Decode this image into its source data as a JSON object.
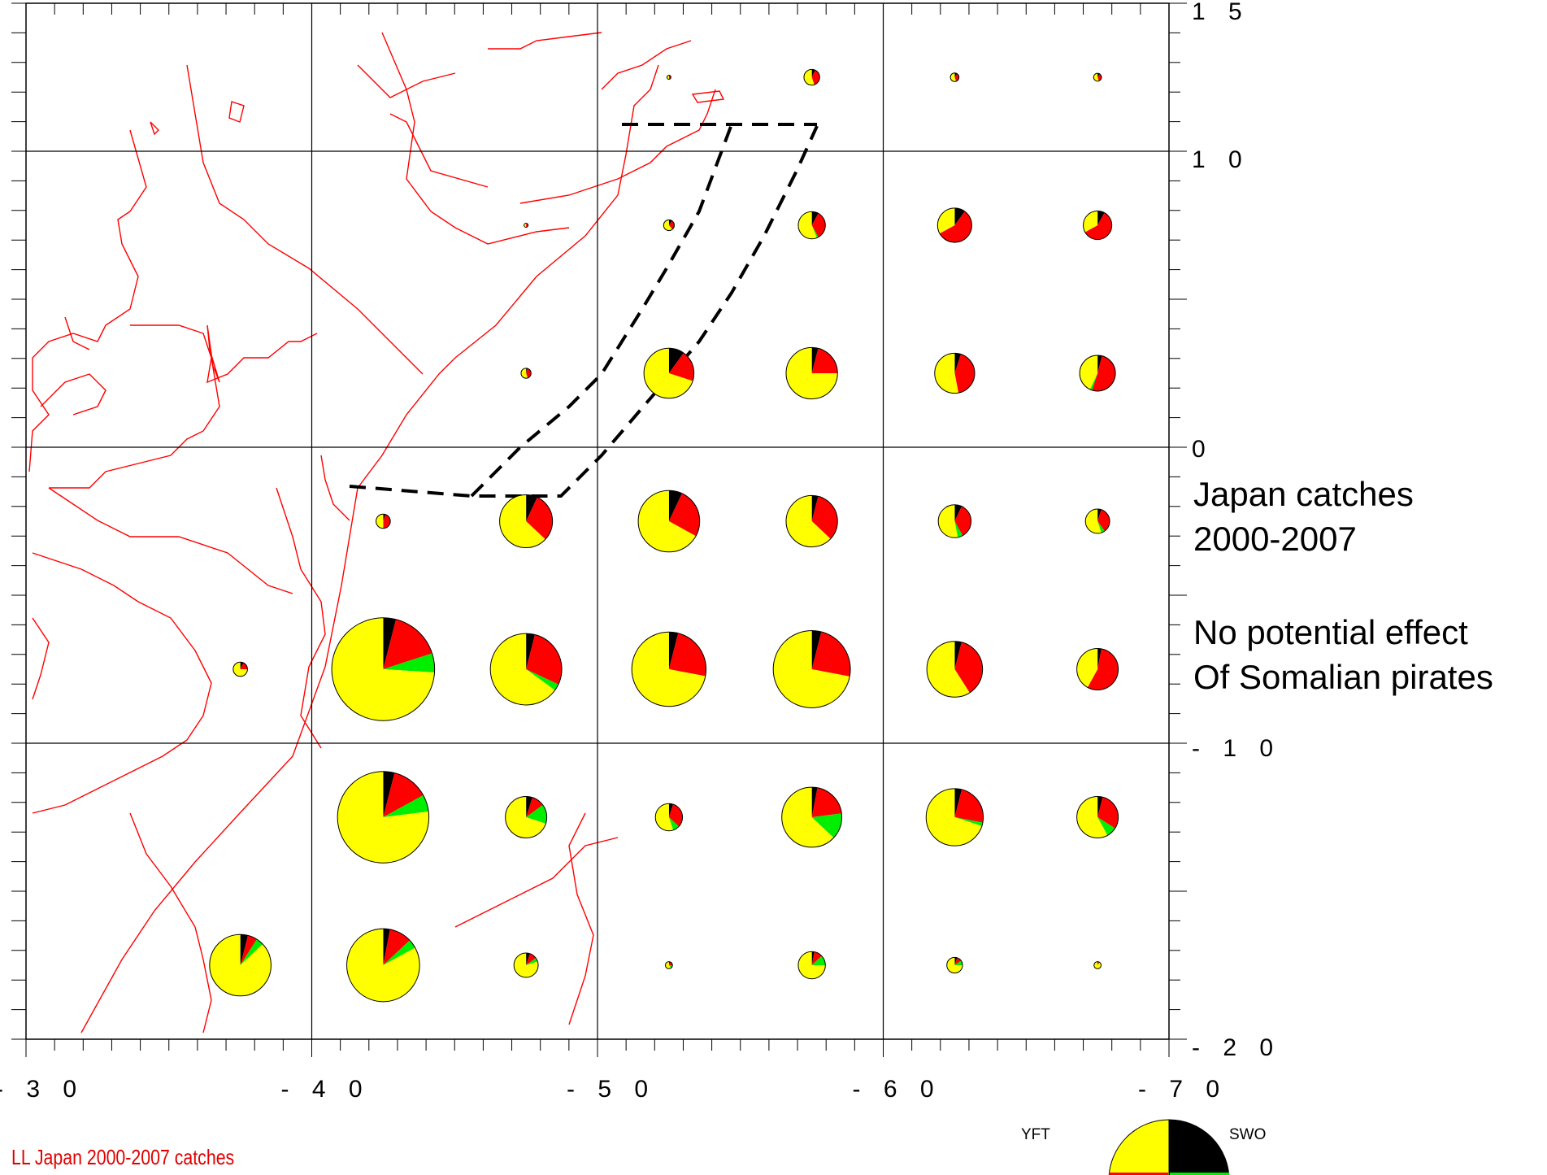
{
  "map": {
    "lon_range": [
      -30,
      -70
    ],
    "lat_range": [
      15,
      -20
    ],
    "x_tick_labels": [
      "- 3 0",
      "- 4 0",
      "- 5 0",
      "- 6 0",
      "- 7 0"
    ],
    "y_tick_labels": [
      "1 5",
      "1 0",
      "0",
      "- 1 0",
      "- 2 0"
    ],
    "grid": true,
    "colors": {
      "coastline": "#ff0000",
      "YFT": "#ffff00",
      "BET": "#ff0000",
      "ALB": "#00ee00",
      "SWO": "#000000",
      "zone_outline": "#000000"
    }
  },
  "notes": {
    "line1": "Japan catches",
    "line2": "2000-2007",
    "line3": "No potential effect",
    "line4": "Of Somalian pirates"
  },
  "caption": "LL Japan 2000-2007 catches",
  "legend": {
    "yft_label": "YFT",
    "swo_label": "SWO"
  },
  "chart_data": {
    "type": "pie-map",
    "series": [
      "YFT",
      "BET",
      "ALB",
      "SWO"
    ],
    "pies": [
      {
        "lon": -52.5,
        "lat": 12.5,
        "size": 0.02,
        "shares": {
          "YFT": 0.5,
          "BET": 0.4,
          "ALB": 0.0,
          "SWO": 0.1
        }
      },
      {
        "lon": -57.5,
        "lat": 12.5,
        "size": 0.11,
        "shares": {
          "YFT": 0.55,
          "BET": 0.38,
          "ALB": 0.0,
          "SWO": 0.07
        }
      },
      {
        "lon": -62.5,
        "lat": 12.5,
        "size": 0.06,
        "shares": {
          "YFT": 0.55,
          "BET": 0.35,
          "ALB": 0.0,
          "SWO": 0.1
        }
      },
      {
        "lon": -67.5,
        "lat": 12.5,
        "size": 0.055,
        "shares": {
          "YFT": 0.55,
          "BET": 0.35,
          "ALB": 0.0,
          "SWO": 0.1
        }
      },
      {
        "lon": -47.5,
        "lat": 7.5,
        "size": 0.013,
        "shares": {
          "YFT": 0.5,
          "BET": 0.5,
          "ALB": 0.0,
          "SWO": 0.0
        }
      },
      {
        "lon": -52.5,
        "lat": 7.5,
        "size": 0.075,
        "shares": {
          "YFT": 0.6,
          "BET": 0.28,
          "ALB": 0.02,
          "SWO": 0.1
        }
      },
      {
        "lon": -57.5,
        "lat": 7.5,
        "size": 0.19,
        "shares": {
          "YFT": 0.56,
          "BET": 0.34,
          "ALB": 0.02,
          "SWO": 0.08
        }
      },
      {
        "lon": -62.5,
        "lat": 7.5,
        "size": 0.24,
        "shares": {
          "YFT": 0.33,
          "BET": 0.57,
          "ALB": 0.0,
          "SWO": 0.1
        }
      },
      {
        "lon": -67.5,
        "lat": 7.5,
        "size": 0.2,
        "shares": {
          "YFT": 0.33,
          "BET": 0.59,
          "ALB": 0.0,
          "SWO": 0.08
        }
      },
      {
        "lon": -47.5,
        "lat": 2.5,
        "size": 0.07,
        "shares": {
          "YFT": 0.55,
          "BET": 0.4,
          "ALB": 0.0,
          "SWO": 0.05
        }
      },
      {
        "lon": -52.5,
        "lat": 2.5,
        "size": 0.35,
        "shares": {
          "YFT": 0.7,
          "BET": 0.2,
          "ALB": 0.0,
          "SWO": 0.1
        }
      },
      {
        "lon": -57.5,
        "lat": 2.5,
        "size": 0.36,
        "shares": {
          "YFT": 0.75,
          "BET": 0.21,
          "ALB": 0.0,
          "SWO": 0.04
        }
      },
      {
        "lon": -62.5,
        "lat": 2.5,
        "size": 0.28,
        "shares": {
          "YFT": 0.53,
          "BET": 0.42,
          "ALB": 0.0,
          "SWO": 0.05
        }
      },
      {
        "lon": -67.5,
        "lat": 2.5,
        "size": 0.25,
        "shares": {
          "YFT": 0.43,
          "BET": 0.51,
          "ALB": 0.02,
          "SWO": 0.04
        }
      },
      {
        "lon": -42.5,
        "lat": -2.5,
        "size": 0.1,
        "shares": {
          "YFT": 0.5,
          "BET": 0.45,
          "ALB": 0.0,
          "SWO": 0.05
        }
      },
      {
        "lon": -47.5,
        "lat": -2.5,
        "size": 0.37,
        "shares": {
          "YFT": 0.63,
          "BET": 0.3,
          "ALB": 0.0,
          "SWO": 0.07
        }
      },
      {
        "lon": -52.5,
        "lat": -2.5,
        "size": 0.43,
        "shares": {
          "YFT": 0.67,
          "BET": 0.26,
          "ALB": 0.0,
          "SWO": 0.07
        }
      },
      {
        "lon": -57.5,
        "lat": -2.5,
        "size": 0.36,
        "shares": {
          "YFT": 0.63,
          "BET": 0.33,
          "ALB": 0.0,
          "SWO": 0.04
        }
      },
      {
        "lon": -62.5,
        "lat": -2.5,
        "size": 0.23,
        "shares": {
          "YFT": 0.53,
          "BET": 0.35,
          "ALB": 0.05,
          "SWO": 0.07
        }
      },
      {
        "lon": -67.5,
        "lat": -2.5,
        "size": 0.17,
        "shares": {
          "YFT": 0.55,
          "BET": 0.35,
          "ALB": 0.05,
          "SWO": 0.05
        }
      },
      {
        "lon": -37.5,
        "lat": -7.5,
        "size": 0.1,
        "shares": {
          "YFT": 0.75,
          "BET": 0.18,
          "ALB": 0.0,
          "SWO": 0.07
        }
      },
      {
        "lon": -42.5,
        "lat": -7.5,
        "size": 0.72,
        "shares": {
          "YFT": 0.74,
          "BET": 0.16,
          "ALB": 0.06,
          "SWO": 0.04
        }
      },
      {
        "lon": -47.5,
        "lat": -7.5,
        "size": 0.5,
        "shares": {
          "YFT": 0.65,
          "BET": 0.28,
          "ALB": 0.03,
          "SWO": 0.04
        }
      },
      {
        "lon": -52.5,
        "lat": -7.5,
        "size": 0.52,
        "shares": {
          "YFT": 0.72,
          "BET": 0.24,
          "ALB": 0.0,
          "SWO": 0.04
        }
      },
      {
        "lon": -57.5,
        "lat": -7.5,
        "size": 0.54,
        "shares": {
          "YFT": 0.72,
          "BET": 0.24,
          "ALB": 0.0,
          "SWO": 0.04
        }
      },
      {
        "lon": -62.5,
        "lat": -7.5,
        "size": 0.39,
        "shares": {
          "YFT": 0.59,
          "BET": 0.37,
          "ALB": 0.0,
          "SWO": 0.04
        }
      },
      {
        "lon": -67.5,
        "lat": -7.5,
        "size": 0.29,
        "shares": {
          "YFT": 0.42,
          "BET": 0.55,
          "ALB": 0.0,
          "SWO": 0.03
        }
      },
      {
        "lon": -42.5,
        "lat": -12.5,
        "size": 0.64,
        "shares": {
          "YFT": 0.77,
          "BET": 0.13,
          "ALB": 0.06,
          "SWO": 0.04
        }
      },
      {
        "lon": -47.5,
        "lat": -12.5,
        "size": 0.29,
        "shares": {
          "YFT": 0.7,
          "BET": 0.1,
          "ALB": 0.15,
          "SWO": 0.05
        }
      },
      {
        "lon": -52.5,
        "lat": -12.5,
        "size": 0.19,
        "shares": {
          "YFT": 0.55,
          "BET": 0.32,
          "ALB": 0.08,
          "SWO": 0.05
        }
      },
      {
        "lon": -57.5,
        "lat": -12.5,
        "size": 0.42,
        "shares": {
          "YFT": 0.63,
          "BET": 0.2,
          "ALB": 0.14,
          "SWO": 0.03
        }
      },
      {
        "lon": -62.5,
        "lat": -12.5,
        "size": 0.4,
        "shares": {
          "YFT": 0.7,
          "BET": 0.24,
          "ALB": 0.02,
          "SWO": 0.04
        }
      },
      {
        "lon": -67.5,
        "lat": -12.5,
        "size": 0.29,
        "shares": {
          "YFT": 0.58,
          "BET": 0.3,
          "ALB": 0.08,
          "SWO": 0.04
        }
      },
      {
        "lon": -37.5,
        "lat": -17.5,
        "size": 0.43,
        "shares": {
          "YFT": 0.87,
          "BET": 0.05,
          "ALB": 0.04,
          "SWO": 0.04
        }
      },
      {
        "lon": -42.5,
        "lat": -17.5,
        "size": 0.51,
        "shares": {
          "YFT": 0.83,
          "BET": 0.1,
          "ALB": 0.04,
          "SWO": 0.03
        }
      },
      {
        "lon": -47.5,
        "lat": -17.5,
        "size": 0.17,
        "shares": {
          "YFT": 0.8,
          "BET": 0.1,
          "ALB": 0.05,
          "SWO": 0.05
        }
      },
      {
        "lon": -52.5,
        "lat": -17.5,
        "size": 0.05,
        "shares": {
          "YFT": 0.6,
          "BET": 0.2,
          "ALB": 0.15,
          "SWO": 0.05
        }
      },
      {
        "lon": -57.5,
        "lat": -17.5,
        "size": 0.19,
        "shares": {
          "YFT": 0.75,
          "BET": 0.1,
          "ALB": 0.12,
          "SWO": 0.03
        }
      },
      {
        "lon": -62.5,
        "lat": -17.5,
        "size": 0.11,
        "shares": {
          "YFT": 0.75,
          "BET": 0.1,
          "ALB": 0.1,
          "SWO": 0.05
        }
      },
      {
        "lon": -67.5,
        "lat": -17.5,
        "size": 0.05,
        "shares": {
          "YFT": 0.9,
          "BET": 0.05,
          "ALB": 0.0,
          "SWO": 0.05
        }
      }
    ]
  }
}
